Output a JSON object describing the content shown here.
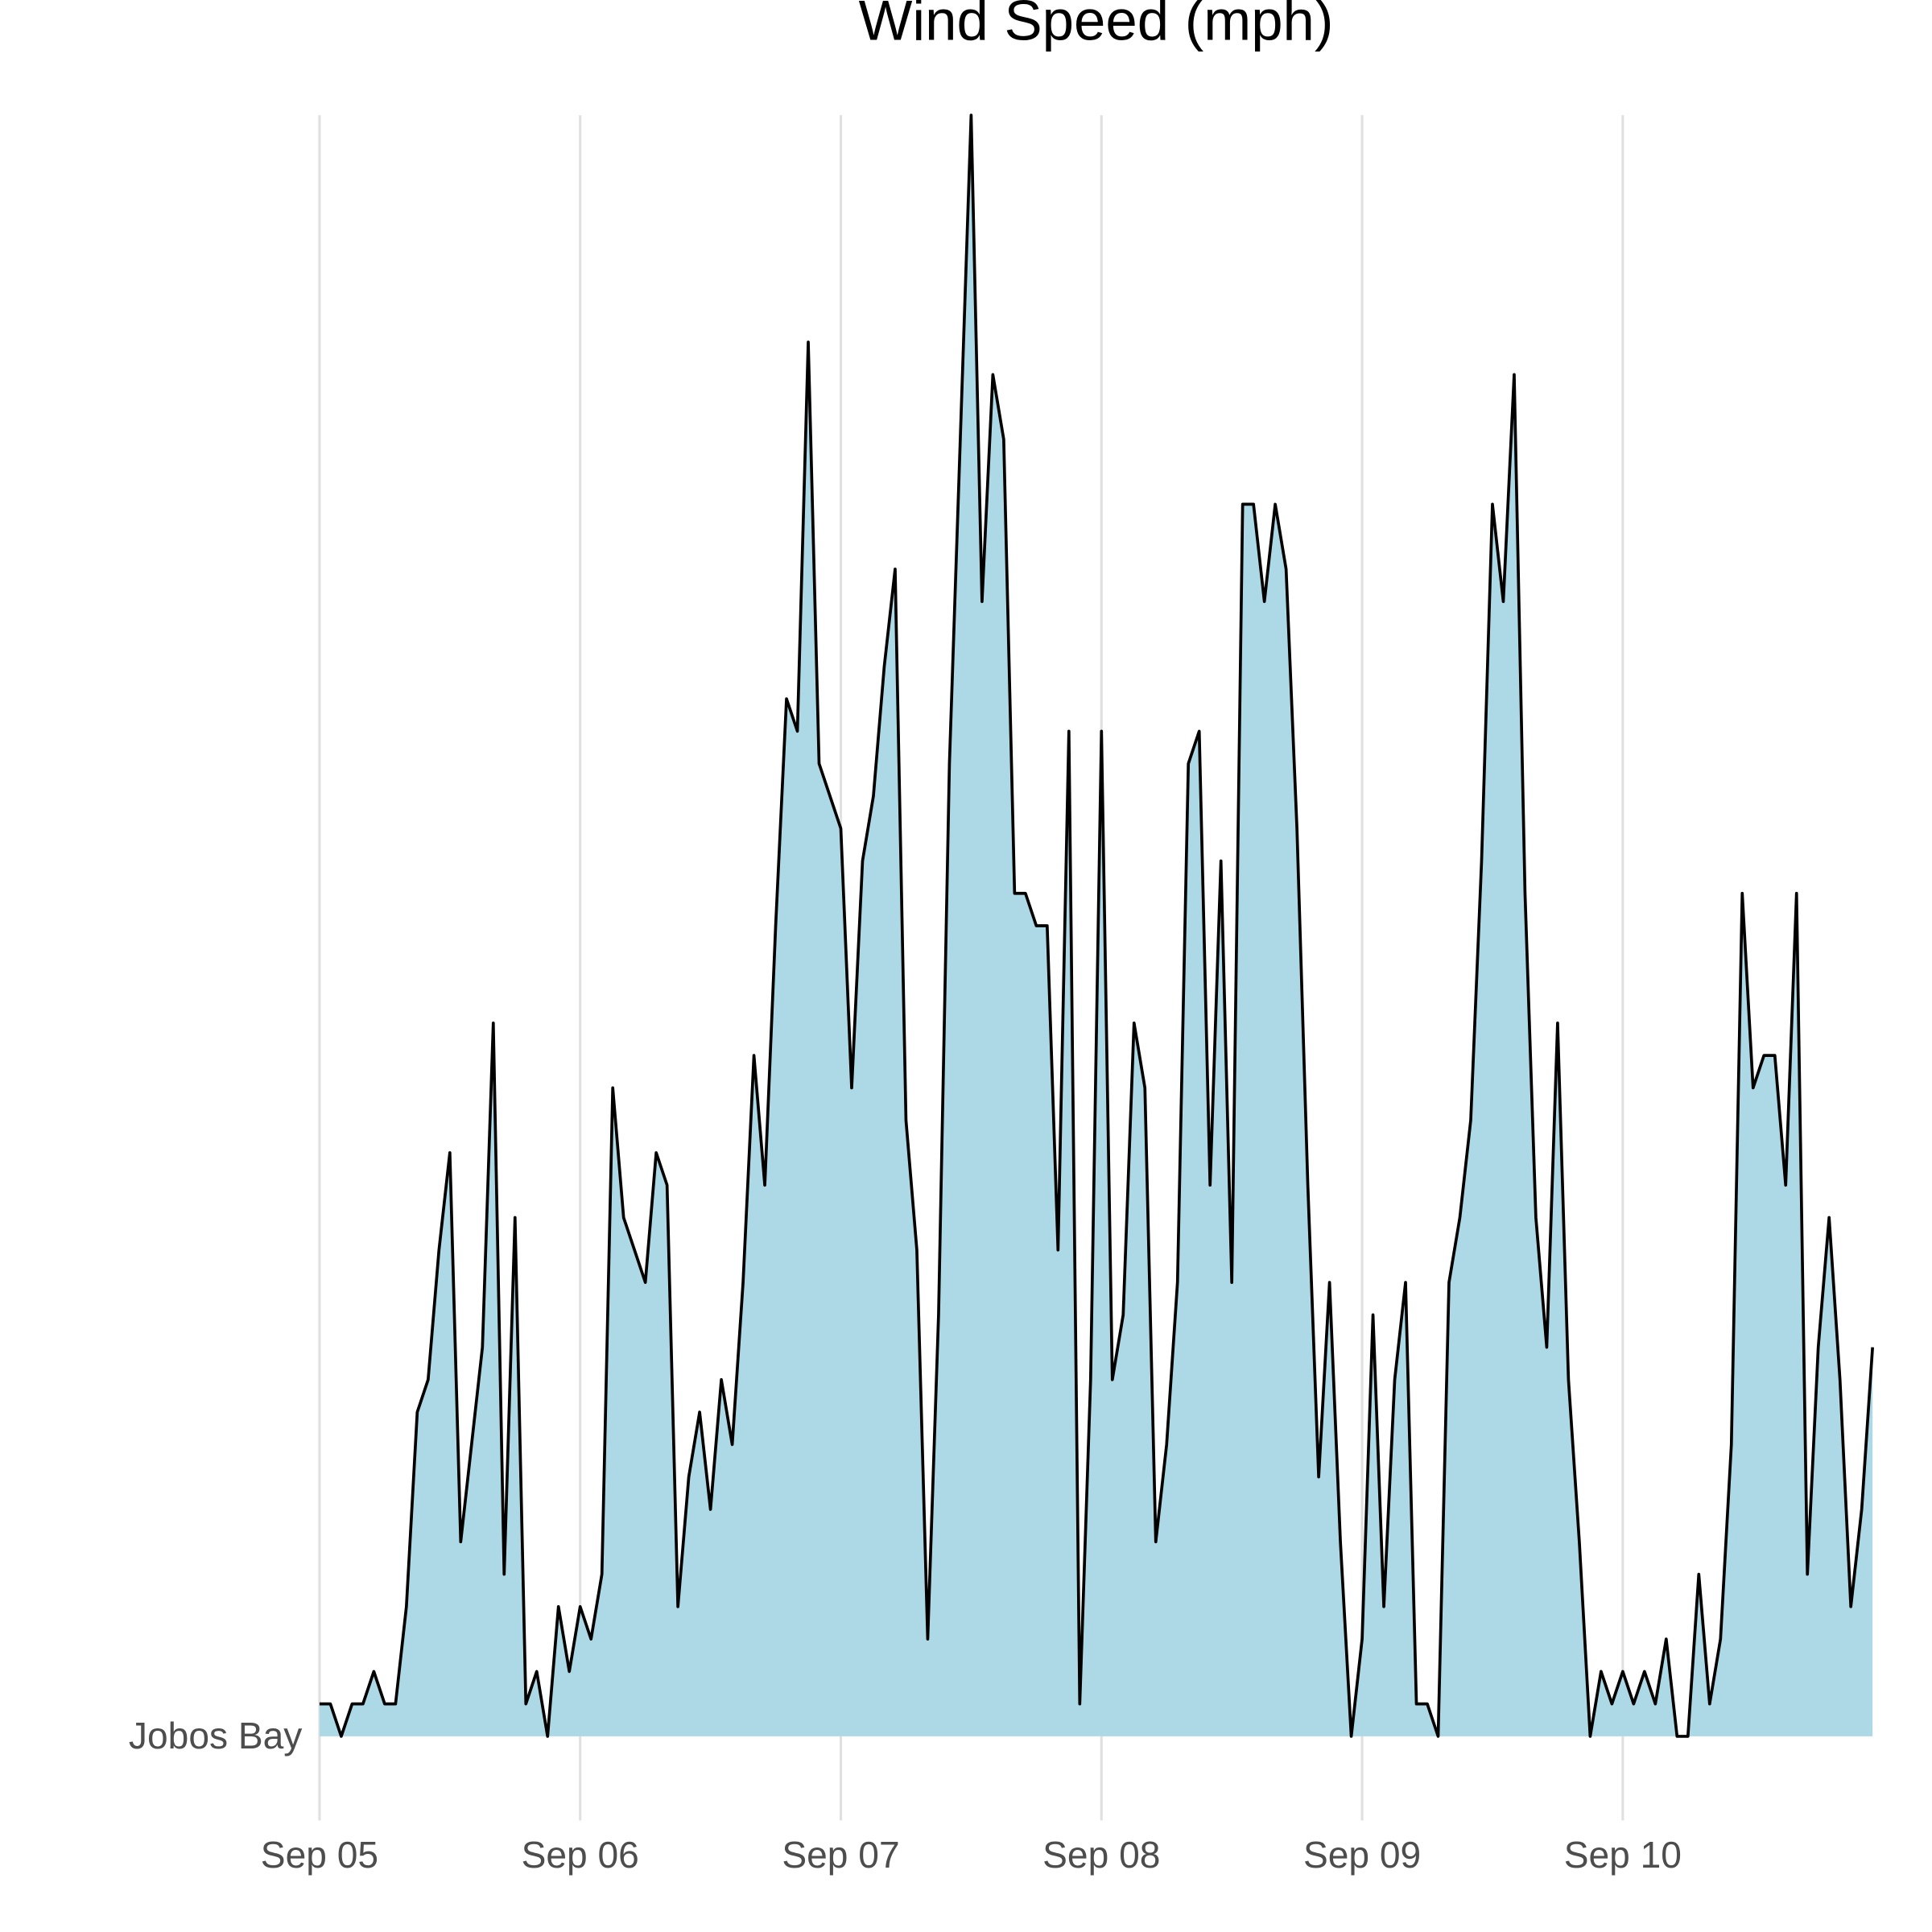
{
  "chart_data": {
    "type": "ridgeline",
    "title": "Wind Speed (mph)",
    "x": [
      0,
      1,
      2,
      3,
      4,
      5,
      6,
      7,
      8,
      9,
      10,
      11,
      12,
      13,
      14,
      15,
      16,
      17,
      18,
      19,
      20,
      21,
      22,
      23,
      24,
      25,
      26,
      27,
      28,
      29,
      30,
      31,
      32,
      33,
      34,
      35,
      36,
      37,
      38,
      39,
      40,
      41,
      42,
      43,
      44,
      45,
      46,
      47,
      48,
      49,
      50,
      51,
      52,
      53,
      54,
      55,
      56,
      57,
      58,
      59,
      60,
      61,
      62,
      63,
      64,
      65,
      66,
      67,
      68,
      69,
      70,
      71,
      72,
      73,
      74,
      75,
      76,
      77,
      78,
      79,
      80,
      81,
      82,
      83,
      84,
      85,
      86,
      87,
      88,
      89,
      90,
      91,
      92,
      93,
      94,
      95,
      96,
      97,
      98,
      99,
      100,
      101,
      102,
      103,
      104,
      105,
      106,
      107,
      108,
      109,
      110,
      111,
      112,
      113,
      114,
      115,
      116,
      117,
      118,
      119,
      120,
      121,
      122,
      123,
      124,
      125,
      126,
      127,
      128,
      129,
      130,
      131,
      132,
      133,
      134,
      135,
      136,
      137,
      138,
      139,
      140,
      141,
      142,
      143
    ],
    "series": [
      {
        "name": "Jobos Bay",
        "color": "#add8e6",
        "line_color": "#000000",
        "values": [
          1,
          1,
          0,
          1,
          1,
          2,
          1,
          1,
          4,
          10,
          11,
          15,
          18,
          6,
          9,
          12,
          22,
          5,
          16,
          1,
          2,
          0,
          4,
          2,
          4,
          3,
          5,
          20,
          16,
          15,
          14,
          18,
          17,
          4,
          8,
          10,
          7,
          11,
          9,
          14,
          21,
          17,
          25,
          32,
          31,
          43,
          30,
          29,
          28,
          20,
          27,
          29,
          33,
          36,
          19,
          15,
          3,
          13,
          30,
          40,
          50,
          35,
          42,
          40,
          26,
          26,
          25,
          25,
          15,
          31,
          1,
          11,
          31,
          11,
          13,
          22,
          20,
          6,
          9,
          14,
          30,
          31,
          17,
          27,
          14,
          38,
          38,
          35,
          38,
          36,
          28,
          17,
          8,
          14,
          6,
          0,
          3,
          13,
          4,
          11,
          14,
          1,
          1,
          0,
          14,
          16,
          19,
          27,
          38,
          35,
          42,
          26,
          16,
          12,
          22,
          11,
          6,
          0,
          2,
          1,
          2,
          1,
          2,
          1,
          3,
          0,
          0,
          5,
          1,
          3,
          9,
          26,
          20,
          21,
          21,
          17,
          26,
          5,
          12,
          16,
          11,
          4,
          7,
          12
        ]
      }
    ],
    "xlim": [
      0,
      143
    ],
    "xticks": [
      {
        "value": 0,
        "label": "Sep 05"
      },
      {
        "value": 24,
        "label": "Sep 06"
      },
      {
        "value": 48,
        "label": "Sep 07"
      },
      {
        "value": 72,
        "label": "Sep 08"
      },
      {
        "value": 96,
        "label": "Sep 09"
      },
      {
        "value": 120,
        "label": "Sep 10"
      }
    ],
    "ylim": [
      0,
      50
    ],
    "grid": true
  }
}
